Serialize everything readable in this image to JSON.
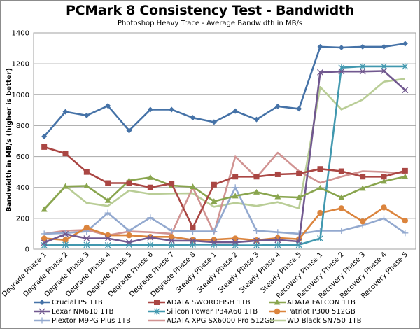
{
  "chart_data": {
    "type": "line",
    "title": "PCMark 8 Consistency Test - Bandwidth",
    "subtitle": "Photoshop Heavy Trace - Average Bandwidth in MB/s",
    "xlabel": "",
    "ylabel": "Bandwidth in MB/s (higher is better)",
    "ylim": [
      0,
      1400
    ],
    "yticks": [
      0,
      200,
      400,
      600,
      800,
      1000,
      1200,
      1400
    ],
    "grid": true,
    "legend_position": "bottom",
    "categories": [
      "Degrade Phase 1",
      "Degrade Phase 2",
      "Degrade Phase 3",
      "Degrade Phase 4",
      "Degrade Phase 5",
      "Degrade Phase 6",
      "Degrade Phase 7",
      "Degrade Phase 8",
      "Steady Phase 1",
      "Steady Phase 2",
      "Steady Phase 3",
      "Steady Phase 4",
      "Steady Phase 5",
      "Recovery Phase 1",
      "Recovery Phase 2",
      "Recovery Phase 3",
      "Recovery Phase 4",
      "Recovery Phase 5"
    ],
    "series": [
      {
        "name": "Crucial P5 1TB",
        "color": "#4572a7",
        "marker": "diamond",
        "values": [
          730,
          890,
          866,
          928,
          768,
          904,
          904,
          851,
          823,
          894,
          840,
          925,
          909,
          1310,
          1305,
          1310,
          1310,
          1330
        ]
      },
      {
        "name": "ADATA SWORDFISH 1TB",
        "color": "#aa4643",
        "marker": "square",
        "values": [
          662,
          620,
          500,
          428,
          428,
          400,
          425,
          140,
          418,
          470,
          470,
          485,
          490,
          520,
          505,
          470,
          470,
          508
        ]
      },
      {
        "name": "ADATA FALCON 1TB",
        "color": "#89a54e",
        "marker": "triangle",
        "values": [
          258,
          407,
          410,
          316,
          445,
          465,
          412,
          405,
          310,
          345,
          370,
          340,
          335,
          397,
          335,
          395,
          440,
          470
        ]
      },
      {
        "name": "Lexar NM610 1TB",
        "color": "#71588f",
        "marker": "x",
        "values": [
          42,
          98,
          70,
          70,
          45,
          75,
          55,
          55,
          45,
          45,
          55,
          60,
          50,
          1145,
          1150,
          1150,
          1153,
          1030
        ]
      },
      {
        "name": "Silicon Power P34A60 1TB",
        "color": "#4198af",
        "marker": "star",
        "values": [
          25,
          28,
          28,
          25,
          28,
          28,
          25,
          30,
          30,
          25,
          25,
          28,
          28,
          70,
          1175,
          1183,
          1183,
          1183
        ]
      },
      {
        "name": "Patriot P300 512GB",
        "color": "#db843d",
        "marker": "circle",
        "values": [
          70,
          60,
          140,
          90,
          90,
          80,
          80,
          60,
          62,
          70,
          58,
          73,
          65,
          235,
          265,
          180,
          270,
          185
        ]
      },
      {
        "name": "Plextor M9PG Plus 1TB",
        "color": "#93a9cf",
        "marker": "plus",
        "values": [
          100,
          105,
          115,
          235,
          120,
          205,
          120,
          115,
          115,
          400,
          120,
          110,
          100,
          120,
          120,
          155,
          200,
          105
        ]
      },
      {
        "name": "ADATA XPG SX6000 Pro 512GB",
        "color": "#d19392",
        "marker": "none",
        "values": [
          100,
          120,
          125,
          90,
          115,
          110,
          100,
          400,
          105,
          600,
          465,
          625,
          505,
          430,
          470,
          505,
          500,
          490
        ]
      },
      {
        "name": "WD Black SN750 1TB",
        "color": "#b9cd96",
        "marker": "none",
        "values": [
          260,
          410,
          300,
          280,
          380,
          358,
          361,
          362,
          275,
          300,
          280,
          305,
          265,
          1050,
          905,
          968,
          1084,
          1103
        ]
      }
    ]
  }
}
